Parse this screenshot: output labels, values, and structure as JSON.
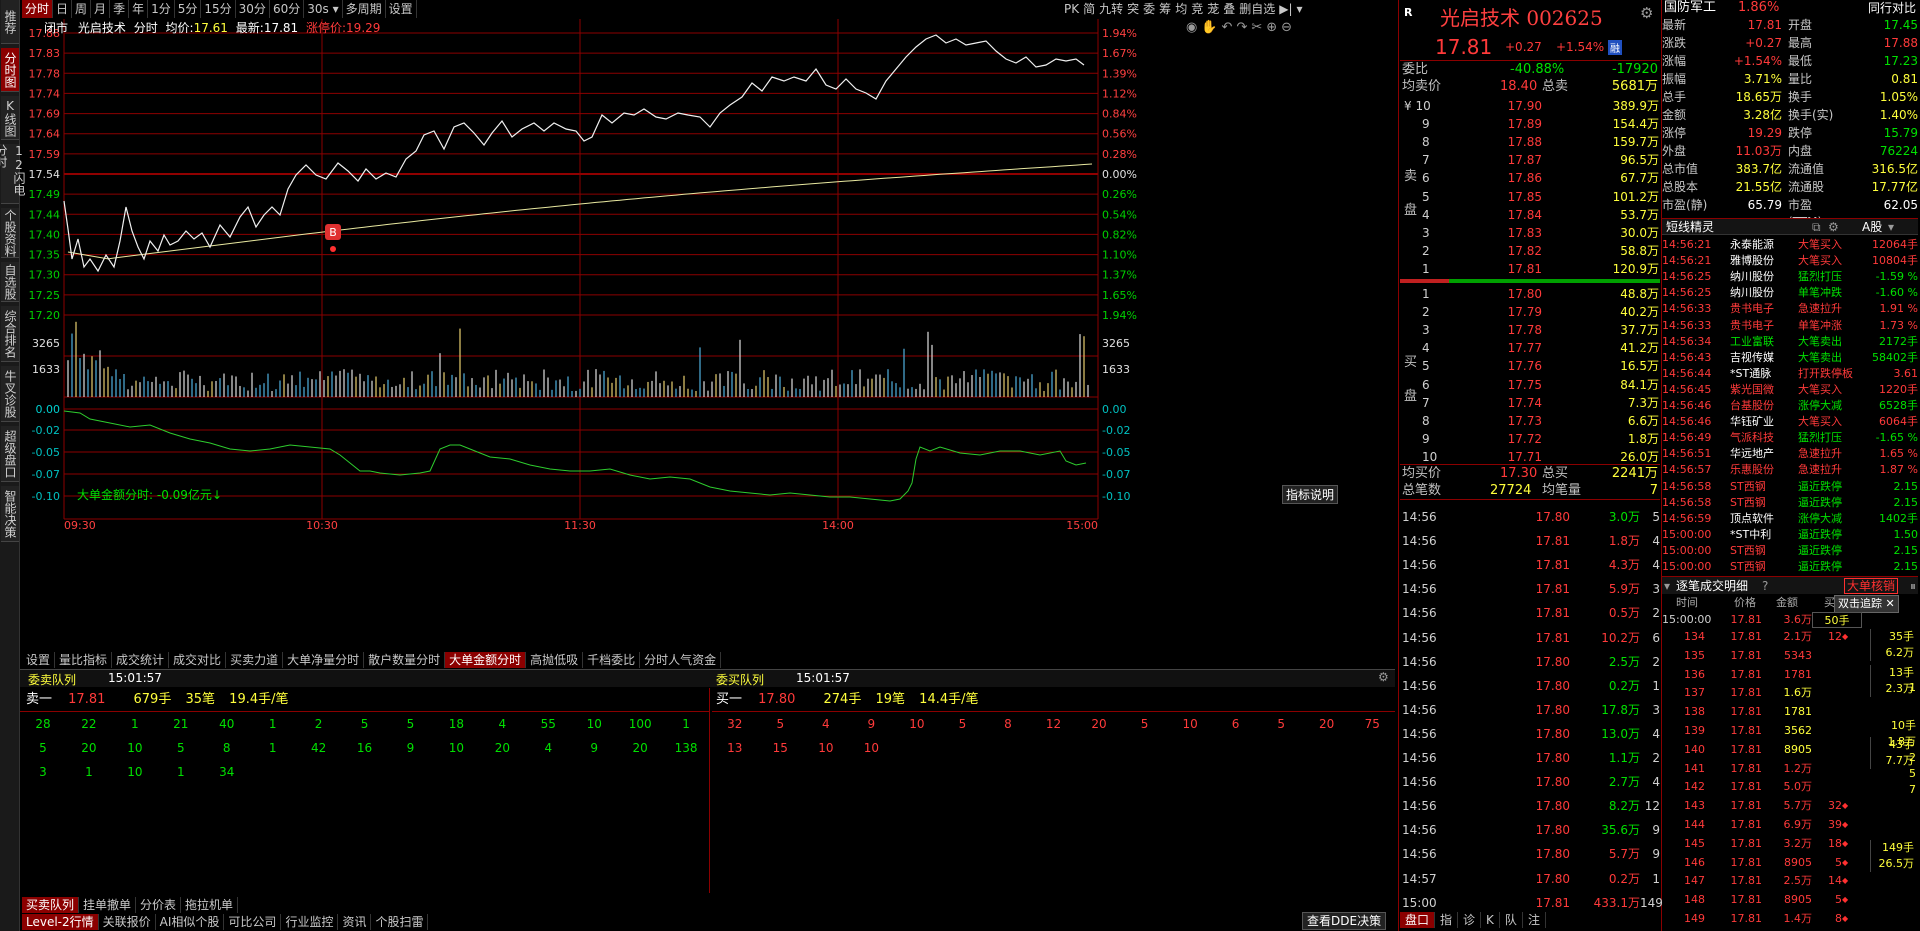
{
  "side_tabs": [
    "推荐",
    "分时图",
    "K线图",
    "12闪电分时",
    "个股资料",
    "自选股",
    "综合排名",
    "牛叉诊股",
    "超级盘口",
    "智能决策"
  ],
  "top_tabs": [
    "分时",
    "日",
    "周",
    "月",
    "季",
    "年",
    "1分",
    "5分",
    "15分",
    "30分",
    "60分",
    "30s",
    "多周期",
    "设置"
  ],
  "right_tools": [
    "PK",
    "简",
    "九转",
    "突",
    "委",
    "筹",
    "均",
    "竞",
    "茏",
    "叠",
    "删自选"
  ],
  "chart_header": {
    "market": "闭市",
    "name": "光启技术",
    "mode": "分时",
    "avg_label": "均价:",
    "avg": "17.61",
    "last_label": "最新:",
    "last": "17.81",
    "limit_label": "涨停价:",
    "limit": "19.29"
  },
  "price_ticks": [
    "17.88",
    "17.83",
    "17.78",
    "17.74",
    "17.69",
    "17.64",
    "17.59",
    "17.54",
    "17.49",
    "17.44",
    "17.40",
    "17.35",
    "17.30",
    "17.25",
    "17.20"
  ],
  "pct_ticks": [
    "1.94%",
    "1.67%",
    "1.39%",
    "1.12%",
    "0.84%",
    "0.56%",
    "0.28%",
    "0.00%",
    "0.26%",
    "0.54%",
    "0.82%",
    "1.10%",
    "1.37%",
    "1.65%",
    "1.94%"
  ],
  "vol_ticks": [
    "3265",
    "1633"
  ],
  "indicator": {
    "label": "大单金额分时:",
    "value": "-0.09亿元",
    "arrow": "↓",
    "ticks": [
      "0.00",
      "-0.02",
      "-0.05",
      "-0.07",
      "-0.10"
    ],
    "button": "指标说明"
  },
  "time_ticks": [
    "09:30",
    "10:30",
    "11:30",
    "14:00",
    "15:00"
  ],
  "buy_marker": "B",
  "sub_tabs": [
    "设置",
    "量比指标",
    "成交统计",
    "成交对比",
    "买卖力道",
    "大单净量分时",
    "散户数量分时",
    "大单金额分时",
    "高抛低吸",
    "千档委比",
    "分时人气资金"
  ],
  "queue": {
    "sell_title": "委卖队列",
    "sell_time": "15:01:57",
    "buy_title": "委买队列",
    "buy_time": "15:01:57",
    "sell_head": {
      "label": "卖一",
      "price": "17.81",
      "hands": "679手",
      "bi": "35笔",
      "avg": "19.4手/笔"
    },
    "buy_head": {
      "label": "买一",
      "price": "17.80",
      "hands": "274手",
      "bi": "19笔",
      "avg": "14.4手/笔"
    },
    "sell_rows": [
      [
        "28",
        "22",
        "1",
        "21",
        "40",
        "1",
        "2",
        "5",
        "5",
        "18",
        "4",
        "55",
        "10",
        "100",
        "1"
      ],
      [
        "5",
        "20",
        "10",
        "5",
        "8",
        "1",
        "42",
        "16",
        "9",
        "10",
        "20",
        "4",
        "9",
        "20",
        "138"
      ],
      [
        "3",
        "1",
        "10",
        "1",
        "34",
        "",
        "",
        "",
        "",
        "",
        "",
        "",
        "",
        "",
        ""
      ]
    ],
    "buy_rows": [
      [
        "32",
        "5",
        "4",
        "9",
        "10",
        "5",
        "8",
        "12",
        "20",
        "5",
        "10",
        "6",
        "5",
        "20",
        "75"
      ],
      [
        "13",
        "15",
        "10",
        "10",
        "",
        "",
        "",
        "",
        "",
        "",
        "",
        "",
        "",
        "",
        ""
      ]
    ]
  },
  "bottom_tabs_1": [
    "买卖队列",
    "挂单撤单",
    "分价表",
    "拖拉机单"
  ],
  "bottom_tabs_2": [
    "Level-2行情",
    "关联报价",
    "AI相似个股",
    "可比公司",
    "行业监控",
    "资讯",
    "个股扫雷"
  ],
  "bottom_right_tabs": [
    "查看DDE决策",
    "盘口",
    "指",
    "诊",
    "K",
    "队",
    "注"
  ],
  "stock": {
    "name": "光启技术",
    "code": "002625",
    "price": "17.81",
    "change": "+0.27",
    "pct": "+1.54%",
    "tag": "融",
    "r_icon": "R"
  },
  "weibi": {
    "label": "委比",
    "pct": "-40.88%",
    "val": "-17920"
  },
  "sell_avg": {
    "label": "均卖价",
    "price": "18.40",
    "total_label": "总卖",
    "total": "5681万"
  },
  "sell_side_label": [
    "卖",
    "盘"
  ],
  "buy_side_label": [
    "买",
    "盘"
  ],
  "asks": [
    {
      "i": "¥ 10",
      "p": "17.90",
      "v": "389.9万"
    },
    {
      "i": "9",
      "p": "17.89",
      "v": "154.4万"
    },
    {
      "i": "8",
      "p": "17.88",
      "v": "159.7万"
    },
    {
      "i": "7",
      "p": "17.87",
      "v": "96.5万"
    },
    {
      "i": "6",
      "p": "17.86",
      "v": "67.7万"
    },
    {
      "i": "5",
      "p": "17.85",
      "v": "101.2万"
    },
    {
      "i": "4",
      "p": "17.84",
      "v": "53.7万"
    },
    {
      "i": "3",
      "p": "17.83",
      "v": "30.0万"
    },
    {
      "i": "2",
      "p": "17.82",
      "v": "58.8万"
    },
    {
      "i": "1",
      "p": "17.81",
      "v": "120.9万"
    }
  ],
  "bids": [
    {
      "i": "1",
      "p": "17.80",
      "v": "48.8万"
    },
    {
      "i": "2",
      "p": "17.79",
      "v": "40.2万"
    },
    {
      "i": "3",
      "p": "17.78",
      "v": "37.7万"
    },
    {
      "i": "4",
      "p": "17.77",
      "v": "41.2万"
    },
    {
      "i": "5",
      "p": "17.76",
      "v": "16.5万"
    },
    {
      "i": "6",
      "p": "17.75",
      "v": "84.1万"
    },
    {
      "i": "7",
      "p": "17.74",
      "v": "7.3万"
    },
    {
      "i": "8",
      "p": "17.73",
      "v": "6.6万"
    },
    {
      "i": "9",
      "p": "17.72",
      "v": "1.8万"
    },
    {
      "i": "10",
      "p": "17.71",
      "v": "26.0万"
    }
  ],
  "buy_avg": {
    "label": "均买价",
    "price": "17.30",
    "total_label": "总买",
    "total": "2241万"
  },
  "total_trades": {
    "label": "总笔数",
    "val": "27724",
    "avg_label": "均笔量",
    "avg": "7"
  },
  "ticks": [
    {
      "t": "14:56",
      "p": "17.80",
      "v": "3.0万",
      "n": "5",
      "c": "g"
    },
    {
      "t": "14:56",
      "p": "17.81",
      "v": "1.8万",
      "n": "4",
      "c": "r"
    },
    {
      "t": "14:56",
      "p": "17.81",
      "v": "4.3万",
      "n": "4",
      "c": "r"
    },
    {
      "t": "14:56",
      "p": "17.81",
      "v": "5.9万",
      "n": "3",
      "c": "r"
    },
    {
      "t": "14:56",
      "p": "17.81",
      "v": "0.5万",
      "n": "2",
      "c": "r"
    },
    {
      "t": "14:56",
      "p": "17.81",
      "v": "10.2万",
      "n": "6",
      "c": "r"
    },
    {
      "t": "14:56",
      "p": "17.80",
      "v": "2.5万",
      "n": "2",
      "c": "g"
    },
    {
      "t": "14:56",
      "p": "17.80",
      "v": "0.2万",
      "n": "1",
      "c": "g"
    },
    {
      "t": "14:56",
      "p": "17.80",
      "v": "17.8万",
      "n": "3",
      "c": "g"
    },
    {
      "t": "14:56",
      "p": "17.80",
      "v": "13.0万",
      "n": "4",
      "c": "g"
    },
    {
      "t": "14:56",
      "p": "17.80",
      "v": "1.1万",
      "n": "2",
      "c": "g"
    },
    {
      "t": "14:56",
      "p": "17.80",
      "v": "2.7万",
      "n": "4",
      "c": "g"
    },
    {
      "t": "14:56",
      "p": "17.80",
      "v": "8.2万",
      "n": "12",
      "c": "g"
    },
    {
      "t": "14:56",
      "p": "17.80",
      "v": "35.6万",
      "n": "9",
      "c": "g"
    },
    {
      "t": "14:56",
      "p": "17.80",
      "v": "5.7万",
      "n": "9",
      "c": "r"
    },
    {
      "t": "14:57",
      "p": "17.80",
      "v": "0.2万",
      "n": "1",
      "c": "r"
    },
    {
      "t": "15:00",
      "p": "17.81",
      "v": "433.1万",
      "n": "149",
      "c": "r"
    }
  ],
  "sector": {
    "name": "国防军工",
    "pct": "1.86%",
    "btn": "同行对比"
  },
  "quote": [
    {
      "k": "最新",
      "v1": "17.81",
      "c1": "r",
      "k2": "开盘",
      "v2": "17.45",
      "c2": "g"
    },
    {
      "k": "涨跌",
      "v1": "+0.27",
      "c1": "r",
      "k2": "最高",
      "v2": "17.88",
      "c2": "r"
    },
    {
      "k": "涨幅",
      "v1": "+1.54%",
      "c1": "r",
      "k2": "最低",
      "v2": "17.23",
      "c2": "g"
    },
    {
      "k": "振幅",
      "v1": "3.71%",
      "c1": "y",
      "k2": "量比",
      "v2": "0.81",
      "c2": "y"
    },
    {
      "k": "总手",
      "v1": "18.65万",
      "c1": "y",
      "k2": "换手",
      "v2": "1.05%",
      "c2": "y"
    },
    {
      "k": "金额",
      "v1": "3.28亿",
      "c1": "y",
      "k2": "换手(实)",
      "v2": "1.40%",
      "c2": "y"
    },
    {
      "k": "涨停",
      "v1": "19.29",
      "c1": "r",
      "k2": "跌停",
      "v2": "15.79",
      "c2": "g"
    },
    {
      "k": "外盘",
      "v1": "11.03万",
      "c1": "r",
      "k2": "内盘",
      "v2": "76224",
      "c2": "g"
    },
    {
      "k": "总市值",
      "v1": "383.7亿",
      "c1": "y",
      "k2": "流通值",
      "v2": "316.5亿",
      "c2": "y"
    },
    {
      "k": "总股本",
      "v1": "21.55亿",
      "c1": "y",
      "k2": "流通股",
      "v2": "17.77亿",
      "c2": "y"
    },
    {
      "k": "市盈(静)",
      "v1": "65.79",
      "c1": "w",
      "k2": "市盈(TTM)",
      "v2": "62.05",
      "c2": "w"
    }
  ],
  "news_header": {
    "title": "短线精灵",
    "market": "A股"
  },
  "news": [
    {
      "t": "14:56:21",
      "s": "永泰能源",
      "e": "大笔买入",
      "v": "12064手",
      "sc": "w",
      "ec": "r"
    },
    {
      "t": "14:56:21",
      "s": "雅博股份",
      "e": "大笔买入",
      "v": "10804手",
      "sc": "w",
      "ec": "r"
    },
    {
      "t": "14:56:25",
      "s": "纳川股份",
      "e": "猛烈打压",
      "v": "-1.59 %",
      "sc": "w",
      "ec": "g"
    },
    {
      "t": "14:56:25",
      "s": "纳川股份",
      "e": "单笔冲跌",
      "v": "-1.60 %",
      "sc": "w",
      "ec": "g"
    },
    {
      "t": "14:56:33",
      "s": "贵书电子",
      "e": "急速拉升",
      "v": "1.91 %",
      "sc": "r",
      "ec": "r"
    },
    {
      "t": "14:56:33",
      "s": "贵书电子",
      "e": "单笔冲涨",
      "v": "1.73 %",
      "sc": "r",
      "ec": "r"
    },
    {
      "t": "14:56:34",
      "s": "工业富联",
      "e": "大笔卖出",
      "v": "2172手",
      "sc": "g",
      "ec": "g"
    },
    {
      "t": "14:56:43",
      "s": "吉视传媒",
      "e": "大笔卖出",
      "v": "58402手",
      "sc": "w",
      "ec": "g"
    },
    {
      "t": "14:56:44",
      "s": "*ST通脉",
      "e": "打开跌停板",
      "v": "3.61",
      "sc": "w",
      "ec": "r"
    },
    {
      "t": "14:56:45",
      "s": "紫光国微",
      "e": "大笔买入",
      "v": "1220手",
      "sc": "r",
      "ec": "r"
    },
    {
      "t": "14:56:46",
      "s": "台基股份",
      "e": "涨停大减",
      "v": "6528手",
      "sc": "r",
      "ec": "g"
    },
    {
      "t": "14:56:46",
      "s": "华钰矿业",
      "e": "大笔买入",
      "v": "6064手",
      "sc": "w",
      "ec": "r"
    },
    {
      "t": "14:56:49",
      "s": "气派科技",
      "e": "猛烈打压",
      "v": "-1.65 %",
      "sc": "r",
      "ec": "g"
    },
    {
      "t": "14:56:51",
      "s": "华远地产",
      "e": "急速拉升",
      "v": "1.65 %",
      "sc": "w",
      "ec": "r"
    },
    {
      "t": "14:56:57",
      "s": "乐惠股份",
      "e": "急速拉升",
      "v": "1.87 %",
      "sc": "r",
      "ec": "r"
    },
    {
      "t": "14:56:58",
      "s": "ST西钢",
      "e": "逼近跌停",
      "v": "2.15",
      "sc": "r",
      "ec": "g"
    },
    {
      "t": "14:56:58",
      "s": "ST西钢",
      "e": "逼近跌停",
      "v": "2.15",
      "sc": "r",
      "ec": "g"
    },
    {
      "t": "14:56:59",
      "s": "顶点软件",
      "e": "涨停大减",
      "v": "1402手",
      "sc": "w",
      "ec": "g"
    },
    {
      "t": "15:00:00",
      "s": "*ST中利",
      "e": "逼近跌停",
      "v": "1.50",
      "sc": "w",
      "ec": "g"
    },
    {
      "t": "15:00:00",
      "s": "ST西钢",
      "e": "逼近跌停",
      "v": "2.15",
      "sc": "r",
      "ec": "g"
    },
    {
      "t": "15:00:00",
      "s": "ST西钢",
      "e": "逼近跌停",
      "v": "2.15",
      "sc": "r",
      "ec": "g"
    }
  ],
  "detail": {
    "title": "逐笔成交明细",
    "btn": "大单核销",
    "sub_btn": "双击追踪",
    "cols": [
      "时间",
      "价格",
      "金额",
      "买"
    ],
    "first": {
      "t": "15:00:00",
      "p": "17.81",
      "a": "3.6万",
      "b": "50手"
    },
    "rows": [
      {
        "n": "134",
        "p": "17.81",
        "a": "2.1万",
        "b": "12"
      },
      {
        "n": "135",
        "p": "17.81",
        "a": "5343",
        "b": ""
      },
      {
        "n": "136",
        "p": "17.81",
        "a": "1781",
        "b": ""
      },
      {
        "n": "137",
        "p": "17.81",
        "a": "1.6万",
        "b": ""
      },
      {
        "n": "138",
        "p": "17.81",
        "a": "1781",
        "b": ""
      },
      {
        "n": "139",
        "p": "17.81",
        "a": "3562",
        "b": ""
      },
      {
        "n": "140",
        "p": "17.81",
        "a": "8905",
        "b": ""
      },
      {
        "n": "141",
        "p": "17.81",
        "a": "1.2万",
        "b": ""
      },
      {
        "n": "142",
        "p": "17.81",
        "a": "5.0万",
        "b": ""
      },
      {
        "n": "143",
        "p": "17.81",
        "a": "5.7万",
        "b": "32"
      },
      {
        "n": "144",
        "p": "17.81",
        "a": "6.9万",
        "b": "39"
      },
      {
        "n": "145",
        "p": "17.81",
        "a": "3.2万",
        "b": "18"
      },
      {
        "n": "146",
        "p": "17.81",
        "a": "8905",
        "b": "5"
      },
      {
        "n": "147",
        "p": "17.81",
        "a": "2.5万",
        "b": "14"
      },
      {
        "n": "148",
        "p": "17.81",
        "a": "8905",
        "b": "5"
      },
      {
        "n": "149",
        "p": "17.81",
        "a": "1.4万",
        "b": "8"
      }
    ],
    "sides": [
      {
        "a": "35手",
        "b": "6.2万"
      },
      {
        "a": "13手",
        "b": "2.3万"
      },
      {
        "a": "43手",
        "b": "7.7万"
      },
      {
        "a": "149手",
        "b": "26.5万"
      }
    ],
    "side_small": [
      "1",
      "10手",
      "1.8万",
      "2",
      "5",
      "7"
    ]
  }
}
